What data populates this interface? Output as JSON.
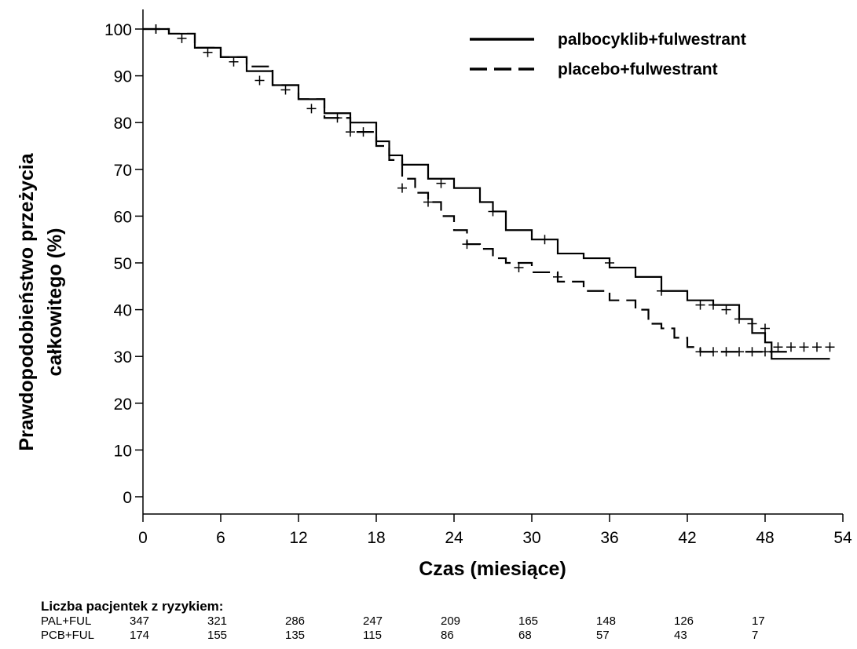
{
  "chart_data": {
    "type": "line",
    "xlabel": "Czas (miesiące)",
    "ylabel": [
      "Prawdopodobieństwo przeżycia",
      "całkowitego (%)"
    ],
    "xlim": [
      0,
      54
    ],
    "ylim": [
      0,
      100
    ],
    "xticks": [
      0,
      6,
      12,
      18,
      24,
      30,
      36,
      42,
      48,
      54
    ],
    "yticks": [
      0,
      10,
      20,
      30,
      40,
      50,
      60,
      70,
      80,
      90,
      100
    ],
    "step": true,
    "legend_position": "upper right",
    "series": [
      {
        "name": "palbocyklib+fulwestrant",
        "color": "#000000",
        "dash": "solid",
        "x": [
          0,
          2,
          4,
          6,
          8,
          10,
          12,
          14,
          16,
          18,
          19,
          20,
          22,
          24,
          26,
          27,
          28,
          30,
          32,
          34,
          36,
          38,
          40,
          42,
          44,
          46,
          47,
          48,
          48.5,
          53
        ],
        "values": [
          100,
          99,
          96,
          94,
          91,
          88,
          85,
          82,
          80,
          76,
          73,
          71,
          68,
          66,
          63,
          61,
          57,
          55,
          52,
          51,
          49,
          47,
          44,
          42,
          41,
          38,
          35,
          33,
          29.5,
          29.5
        ],
        "censored": {
          "x": [
            1,
            3,
            7,
            11,
            15,
            17,
            23,
            27,
            31,
            36,
            40,
            43,
            44,
            45,
            46,
            47,
            48
          ],
          "values": [
            100,
            98,
            93,
            87,
            81,
            78,
            67,
            61,
            55,
            50,
            44,
            41,
            41,
            40,
            38,
            37,
            36
          ]
        }
      },
      {
        "name": "placebo+fulwestrant",
        "color": "#000000",
        "dash": "dashed",
        "x": [
          0,
          2,
          4,
          6,
          8,
          10,
          12,
          14,
          16,
          18,
          19,
          20,
          21,
          22,
          23,
          24,
          25,
          26,
          27,
          28,
          30,
          32,
          34,
          36,
          38,
          39,
          40,
          41,
          42,
          43,
          50
        ],
        "values": [
          100,
          99,
          96,
          94,
          92,
          88,
          85,
          81,
          78,
          75,
          72,
          68,
          65,
          63,
          60,
          57,
          54,
          53,
          51,
          50,
          48,
          46,
          44,
          42,
          40,
          37,
          36,
          34,
          32,
          31,
          31
        ],
        "censored": {
          "x": [
            1,
            5,
            9,
            13,
            16,
            20,
            22,
            25,
            29,
            32,
            43,
            44,
            45,
            46,
            47,
            48,
            49,
            50,
            51,
            52,
            53
          ],
          "values": [
            100,
            95,
            89,
            83,
            78,
            66,
            63,
            54,
            49,
            47,
            31,
            31,
            31,
            31,
            31,
            31,
            32,
            32,
            32,
            32,
            32
          ]
        }
      }
    ],
    "risk_table": {
      "title": "Liczba pacjentek z ryzykiem:",
      "rows": [
        {
          "label": "PAL+FUL",
          "values": [
            347,
            321,
            286,
            247,
            209,
            165,
            148,
            126,
            17
          ]
        },
        {
          "label": "PCB+FUL",
          "values": [
            174,
            155,
            135,
            115,
            86,
            68,
            57,
            43,
            7
          ]
        }
      ]
    }
  }
}
